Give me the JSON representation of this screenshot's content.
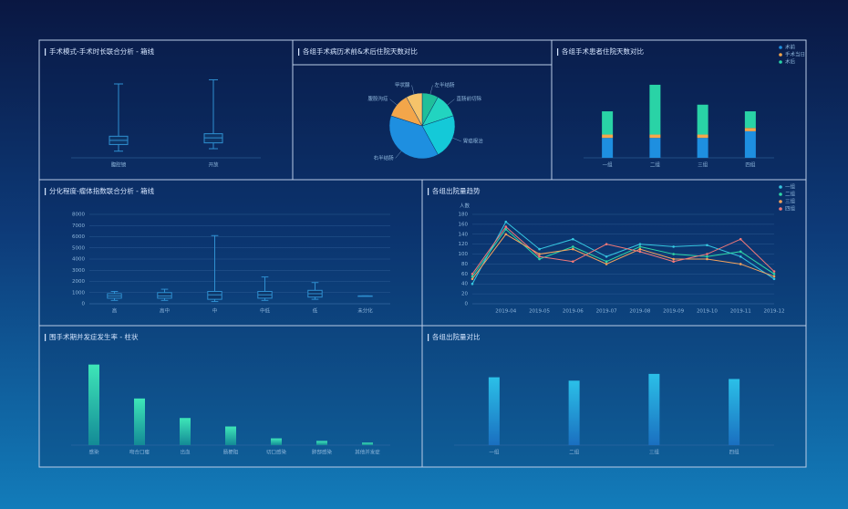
{
  "chart_data": [
    {
      "type": "box",
      "title": "手术模式-手术时长联合分析 - 箱线",
      "categories": [
        "腹腔镜",
        "开放"
      ],
      "stats": [
        [
          8,
          16,
          21,
          26,
          89
        ],
        [
          11,
          18,
          24,
          29,
          94
        ]
      ],
      "color": "#2f8fd0",
      "ylim": [
        0,
        100
      ]
    },
    {
      "type": "pie",
      "title": "各组手术病历术前&术后住院天数对比",
      "categories": [
        "左半结肠",
        "直肠前切除",
        "胃癌根治",
        "右半结肠",
        "腹股沟疝",
        "甲状腺"
      ],
      "values": [
        8,
        12,
        22,
        38,
        12,
        8
      ],
      "colors": [
        "#1fbf9a",
        "#22d4c0",
        "#14c9d8",
        "#1e8fe0",
        "#f3a64a",
        "#f6c36a"
      ]
    },
    {
      "type": "stacked",
      "title": "各组手术患者住院天数对比",
      "categories": [
        "一组",
        "二组",
        "三组",
        "四组"
      ],
      "ylim": [
        0,
        25
      ],
      "legend": "top-right",
      "series": [
        {
          "name": "术前",
          "color": "#1e8fe0",
          "values": [
            6,
            6,
            6,
            8
          ]
        },
        {
          "name": "手术当日",
          "color": "#f6a64a",
          "values": [
            1,
            1,
            1,
            1
          ]
        },
        {
          "name": "术后",
          "color": "#29d3a6",
          "values": [
            7,
            15,
            9,
            5
          ]
        }
      ]
    },
    {
      "type": "box",
      "title": "分化程度-瘤体指数联合分析 - 箱线",
      "categories": [
        "高",
        "高中",
        "中",
        "中低",
        "低",
        "未分化"
      ],
      "stats": [
        [
          300,
          500,
          700,
          900,
          1100
        ],
        [
          300,
          500,
          700,
          1000,
          1300
        ],
        [
          200,
          400,
          800,
          1100,
          6100
        ],
        [
          300,
          500,
          800,
          1100,
          2400
        ],
        [
          400,
          600,
          900,
          1200,
          1900
        ],
        [
          700,
          700,
          700,
          700,
          700
        ]
      ],
      "color": "#2f8fd0",
      "ylim": [
        0,
        8000
      ],
      "yticks": [
        0,
        1000,
        2000,
        3000,
        4000,
        5000,
        6000,
        7000,
        8000
      ],
      "grid": true
    },
    {
      "type": "line",
      "title": "各组出院量趋势",
      "y_label": "人数",
      "categories": [
        null,
        "2019-04",
        "2019-05",
        "2019-06",
        "2019-07",
        "2019-08",
        "2019-09",
        "2019-10",
        "2019-11",
        "2019-12"
      ],
      "ylim": [
        0,
        180
      ],
      "yticks": [
        0,
        20,
        40,
        60,
        80,
        100,
        120,
        140,
        160,
        180
      ],
      "grid": true,
      "legend": "top-right",
      "series": [
        {
          "name": "一组",
          "color": "#36c6e0",
          "values": [
            40,
            165,
            110,
            130,
            95,
            120,
            115,
            118,
            95,
            50
          ]
        },
        {
          "name": "二组",
          "color": "#2fd6a6",
          "values": [
            55,
            150,
            90,
            115,
            85,
            115,
            100,
            95,
            105,
            60
          ]
        },
        {
          "name": "三组",
          "color": "#f5a35c",
          "values": [
            50,
            140,
            100,
            110,
            80,
            110,
            90,
            90,
            80,
            55
          ]
        },
        {
          "name": "四组",
          "color": "#f07878",
          "values": [
            60,
            155,
            95,
            85,
            120,
            105,
            85,
            100,
            130,
            65
          ]
        }
      ]
    },
    {
      "type": "bar",
      "title": "围手术期并发症发生率 - 柱状",
      "categories": [
        "感染",
        "吻合口瘘",
        "出血",
        "肠梗阻",
        "切口感染",
        "肺部感染",
        "其他并发症"
      ],
      "values": [
        95,
        55,
        32,
        22,
        8,
        5,
        3
      ],
      "colors": [
        "#3ee6b8",
        "#138a96"
      ],
      "ylim": [
        0,
        100
      ]
    },
    {
      "type": "bar",
      "title": "各组出院量对比",
      "categories": [
        "一组",
        "二组",
        "三组",
        "四组"
      ],
      "values": [
        80,
        76,
        84,
        78
      ],
      "colors": [
        "#2bc0e8",
        "#1a6fc0"
      ],
      "ylim": [
        0,
        100
      ]
    }
  ]
}
